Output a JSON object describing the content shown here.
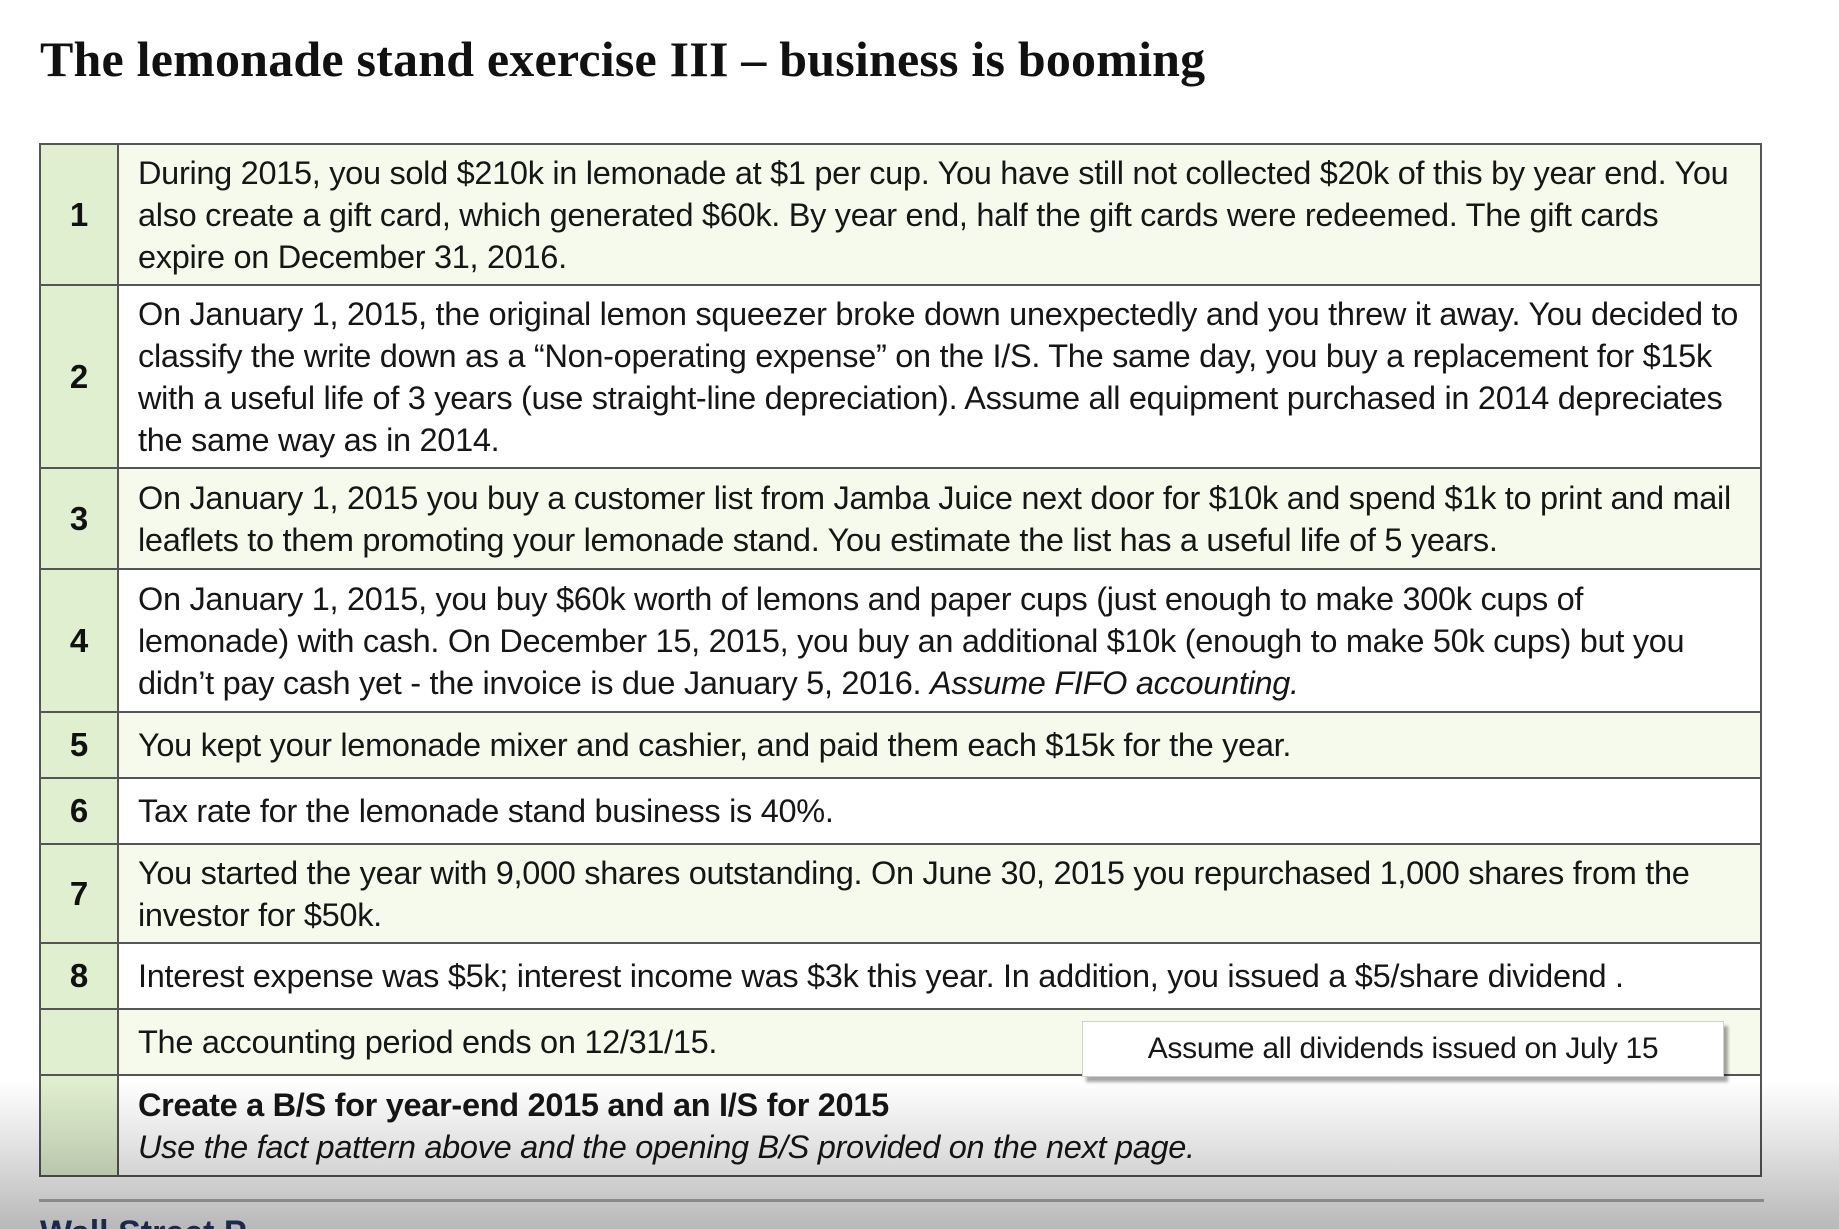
{
  "title": "The lemonade stand exercise III – business is booming",
  "rows": [
    {
      "num": "1",
      "text": "During 2015, you sold $210k in lemonade at $1 per cup. You have still not collected $20k of this by year end. You also create a gift card, which generated $60k. By year end, half the gift cards were redeemed. The gift cards expire on December 31, 2016."
    },
    {
      "num": "2",
      "text": "On January 1, 2015, the original lemon squeezer broke down  unexpectedly and you threw it away.  You decided  to classify the write down as a “Non-operating expense” on the I/S. The same day, you buy a replacement for $15k with a useful life of 3 years (use straight-line depreciation).  Assume all equipment purchased in 2014 depreciates the same way as in 2014."
    },
    {
      "num": "3",
      "text": "On January 1, 2015 you buy a customer list from Jamba Juice next door for $10k and spend $1k to print and mail leaflets to them promoting your lemonade stand.  You estimate the list has a useful life of 5 years."
    },
    {
      "num": "4",
      "text": "On January 1, 2015, you buy $60k worth of lemons and paper cups (just enough to make 300k cups of lemonade) with cash. On December 15, 2015, you buy an additional $10k (enough to make 50k cups) but you didn’t pay cash yet - the invoice is due January 5, 2016. ",
      "italic_tail": "Assume FIFO accounting."
    },
    {
      "num": "5",
      "text": "You kept your lemonade mixer and cashier, and paid them each $15k for the year."
    },
    {
      "num": "6",
      "text": "Tax rate for the lemonade stand business is 40%."
    },
    {
      "num": "7",
      "text": "You started the year with 9,000 shares outstanding. On June 30, 2015 you repurchased 1,000 shares from the investor for $50k."
    },
    {
      "num": "8",
      "text": "Interest expense was $5k; interest income was $3k this year. In addition, you issued a $5/share dividend ."
    },
    {
      "num": "",
      "text": "The accounting period ends on 12/31/15."
    }
  ],
  "final_row": {
    "bold": "Create a B/S for year-end 2015 and an I/S for 2015",
    "italic": "Use the fact pattern above  and the opening B/S provided on the next page."
  },
  "callout": "Assume all dividends issued on July 15",
  "footer_logo": "Wall Street P",
  "colors": {
    "number_cell_bg": "#e0efcf",
    "text_cell_bg": "#f5faec",
    "border": "#555555"
  }
}
